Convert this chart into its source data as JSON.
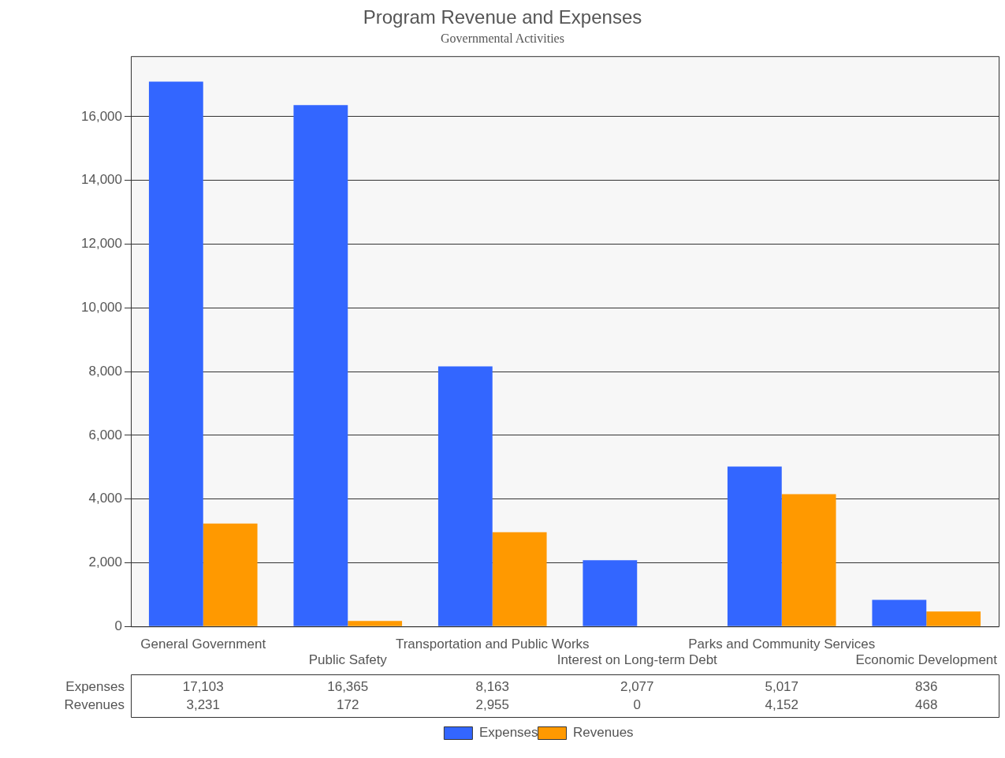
{
  "chart_data": {
    "type": "bar",
    "title": "Program Revenue and Expenses",
    "subtitle": "Governmental Activities",
    "categories": [
      "General Government",
      "Public Safety",
      "Transportation and Public Works",
      "Interest on Long-term Debt",
      "Parks and Community Services",
      "Economic Development"
    ],
    "series": [
      {
        "name": "Expenses",
        "color": "#3366ff",
        "values": [
          17103,
          16365,
          8163,
          2077,
          5017,
          836
        ],
        "value_labels": [
          "17,103",
          "16,365",
          "8,163",
          "2,077",
          "5,017",
          "836"
        ]
      },
      {
        "name": "Revenues",
        "color": "#ff9900",
        "values": [
          3231,
          172,
          2955,
          0,
          4152,
          468
        ],
        "value_labels": [
          "3,231",
          "172",
          "2,955",
          "0",
          "4,152",
          "468"
        ]
      }
    ],
    "ylim": [
      0,
      17900
    ],
    "yticks": [
      0,
      {
        "value": 2000,
        "label": "2,000"
      },
      {
        "value": 4000,
        "label": "4,000"
      },
      {
        "value": 6000,
        "label": "6,000"
      },
      {
        "value": 8000,
        "label": "8,000"
      },
      {
        "value": 10000,
        "label": "10,000"
      },
      {
        "value": 12000,
        "label": "12,000"
      },
      {
        "value": 14000,
        "label": "14,000"
      },
      {
        "value": 16000,
        "label": "16,000"
      }
    ],
    "grid": "y",
    "legend": "bottom"
  }
}
